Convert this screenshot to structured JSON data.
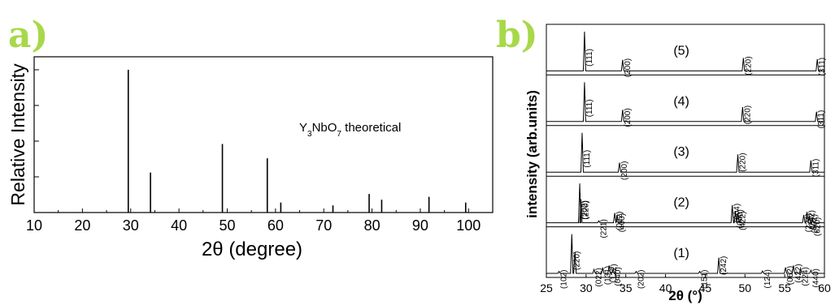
{
  "colors": {
    "panel_label": "#a8d84a",
    "line": "#000000"
  },
  "panel_a": {
    "label": "a)",
    "annotation": {
      "prefix": "Y",
      "sub1": "3",
      "mid": "NbO",
      "sub2": "7",
      "suffix": " theoretical"
    }
  },
  "panel_b": {
    "label": "b)"
  },
  "chart_data": [
    {
      "type": "bar",
      "xlabel": "2θ (degree)",
      "ylabel": "Relative Intensity",
      "xlim": [
        10,
        105
      ],
      "ylim": [
        0,
        100
      ],
      "xticks": [
        10,
        20,
        30,
        40,
        50,
        60,
        70,
        80,
        90,
        100
      ],
      "x": [
        29.5,
        34.1,
        49.0,
        58.3,
        61.1,
        71.9,
        79.4,
        82.0,
        91.8,
        99.4
      ],
      "values": [
        100,
        28,
        48,
        38,
        7,
        5,
        13,
        9,
        11,
        7
      ],
      "annotation": "Y3NbO7 theoretical"
    },
    {
      "type": "line",
      "xlabel": "2θ (°)",
      "ylabel": "intensity (arb.units)",
      "xlim": [
        25,
        60
      ],
      "xticks": [
        25,
        30,
        35,
        40,
        45,
        50,
        55,
        60
      ],
      "series": [
        {
          "name": "(5)",
          "peaks": [
            {
              "x": 29.8,
              "h": 1.0,
              "label": "(111)"
            },
            {
              "x": 34.6,
              "h": 0.28,
              "label": "(200)"
            },
            {
              "x": 49.8,
              "h": 0.33,
              "label": "(220)"
            },
            {
              "x": 59.1,
              "h": 0.3,
              "label": "(311)"
            }
          ]
        },
        {
          "name": "(4)",
          "peaks": [
            {
              "x": 29.8,
              "h": 1.0,
              "label": "(111)"
            },
            {
              "x": 34.6,
              "h": 0.3,
              "label": "(200)"
            },
            {
              "x": 49.7,
              "h": 0.37,
              "label": "(220)"
            },
            {
              "x": 59.0,
              "h": 0.25,
              "label": "(311)"
            }
          ]
        },
        {
          "name": "(3)",
          "peaks": [
            {
              "x": 29.5,
              "h": 1.0,
              "label": "(111)"
            },
            {
              "x": 34.2,
              "h": 0.24,
              "label": "(200)"
            },
            {
              "x": 49.1,
              "h": 0.45,
              "label": "(220)"
            },
            {
              "x": 58.3,
              "h": 0.3,
              "label": "(311)"
            }
          ]
        },
        {
          "name": "(2)",
          "peaks": [
            {
              "x": 29.2,
              "h": 1.0,
              "label": "(202)"
            },
            {
              "x": 29.35,
              "h": 0.6,
              "label": "(220)"
            },
            {
              "x": 31.6,
              "h": 0.05,
              "label": "(221)"
            },
            {
              "x": 33.6,
              "h": 0.25,
              "label": "(022)"
            },
            {
              "x": 33.9,
              "h": 0.2,
              "label": "(400)"
            },
            {
              "x": 48.4,
              "h": 0.45,
              "label": "(004)"
            },
            {
              "x": 48.8,
              "h": 0.3,
              "label": "(040)"
            },
            {
              "x": 49.1,
              "h": 0.25,
              "label": "(422)"
            },
            {
              "x": 57.4,
              "h": 0.2,
              "label": "(224)"
            },
            {
              "x": 57.8,
              "h": 0.28,
              "label": "(242)"
            },
            {
              "x": 58.1,
              "h": 0.18,
              "label": "(602)"
            },
            {
              "x": 58.5,
              "h": 0.1,
              "label": "(620)"
            }
          ]
        },
        {
          "name": "(1)",
          "peaks": [
            {
              "x": 26.6,
              "h": 0.05,
              "label": "(102)"
            },
            {
              "x": 28.2,
              "h": 1.0,
              "label": "(220)"
            },
            {
              "x": 28.6,
              "h": 0.55,
              "label": ""
            },
            {
              "x": 31.0,
              "h": 0.1,
              "label": "(022)"
            },
            {
              "x": 32.1,
              "h": 0.15,
              "label": "(131)"
            },
            {
              "x": 32.9,
              "h": 0.2,
              "label": "(122)"
            },
            {
              "x": 33.4,
              "h": 0.12,
              "label": "(040)"
            },
            {
              "x": 36.3,
              "h": 0.05,
              "label": "(202)"
            },
            {
              "x": 44.3,
              "h": 0.05,
              "label": "(151)"
            },
            {
              "x": 46.7,
              "h": 0.4,
              "label": "(242)"
            },
            {
              "x": 52.2,
              "h": 0.06,
              "label": "(124)"
            },
            {
              "x": 55.1,
              "h": 0.15,
              "label": "(062)"
            },
            {
              "x": 56.1,
              "h": 0.2,
              "label": "(422)"
            },
            {
              "x": 57.0,
              "h": 0.12,
              "label": "(224)"
            },
            {
              "x": 58.3,
              "h": 0.08,
              "label": "(440)"
            }
          ]
        }
      ]
    }
  ]
}
